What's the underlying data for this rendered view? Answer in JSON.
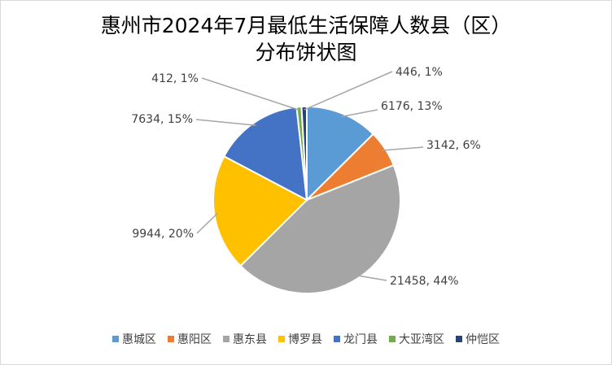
{
  "chart_data": {
    "type": "pie",
    "title": "惠州市2024年7月最低生活保障人数县（区）分布饼状图",
    "title_lines": [
      "惠州市2024年7月最低生活保障人数县（区）",
      "分布饼状图"
    ],
    "categories": [
      "惠城区",
      "惠阳区",
      "惠东县",
      "博罗县",
      "龙门县",
      "大亚湾区",
      "仲恺区"
    ],
    "values": [
      6176,
      3142,
      21458,
      9944,
      7634,
      412,
      446
    ],
    "percent_labels": [
      "13%",
      "6%",
      "44%",
      "20%",
      "15%",
      "1%",
      "1%"
    ],
    "data_labels": [
      "6176, 13%",
      "3142, 6%",
      "21458, 44%",
      "9944, 20%",
      "7634, 15%",
      "412, 1%",
      "446, 1%"
    ],
    "colors": [
      "#5B9BD5",
      "#ED7D31",
      "#A5A5A5",
      "#FFC000",
      "#4472C4",
      "#70AD47",
      "#264478"
    ],
    "legend_position": "bottom"
  }
}
